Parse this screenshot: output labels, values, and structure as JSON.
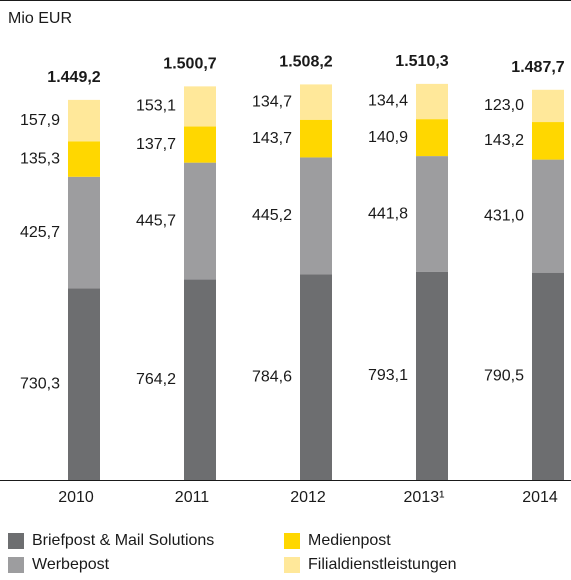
{
  "chart_data": {
    "type": "stacked_bar",
    "y_axis_label": "Mio EUR",
    "categories": [
      "2010",
      "2011",
      "2012",
      "2013¹",
      "2014"
    ],
    "ylim": [
      0,
      1830
    ],
    "series": [
      {
        "name": "Briefpost & Mail Solutions",
        "color": "#6d6e70",
        "values": [
          730.3,
          764.2,
          784.6,
          793.1,
          790.5
        ],
        "value_labels": [
          "730,3",
          "764,2",
          "784,6",
          "793,1",
          "790,5"
        ]
      },
      {
        "name": "Werbepost",
        "color": "#9d9d9f",
        "values": [
          425.7,
          445.7,
          445.2,
          441.8,
          431.0
        ],
        "value_labels": [
          "425,7",
          "445,7",
          "445,2",
          "441,8",
          "431,0"
        ]
      },
      {
        "name": "Medienpost",
        "color": "#ffd700",
        "values": [
          135.3,
          137.7,
          143.7,
          140.9,
          143.2
        ],
        "value_labels": [
          "135,3",
          "137,7",
          "143,7",
          "140,9",
          "143,2"
        ]
      },
      {
        "name": "Filialdienstleistungen",
        "color": "#ffe89a",
        "values": [
          157.9,
          153.1,
          134.7,
          134.4,
          123.0
        ],
        "value_labels": [
          "157,9",
          "153,1",
          "134,7",
          "134,4",
          "123,0"
        ]
      }
    ],
    "totals": [
      1449.2,
      1500.7,
      1508.2,
      1510.3,
      1487.7
    ],
    "total_labels": [
      "1.449,2",
      "1.500,7",
      "1.508,2",
      "1.510,3",
      "1.487,7"
    ]
  }
}
